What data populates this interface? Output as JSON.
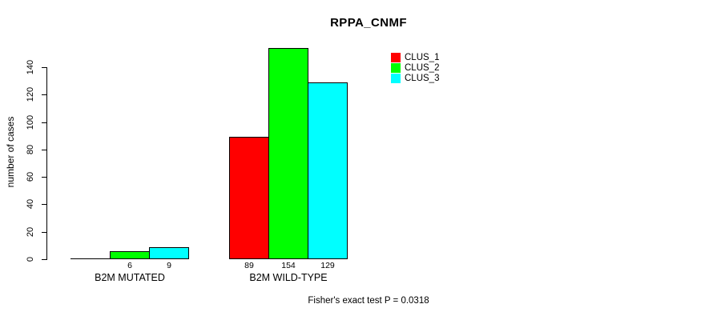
{
  "chart_data": {
    "type": "bar",
    "title": "RPPA_CNMF",
    "ylabel": "number of cases",
    "xlabel": "",
    "categories": [
      "B2M MUTATED",
      "B2M WILD-TYPE"
    ],
    "series": [
      {
        "name": "CLUS_1",
        "color": "#ff0000",
        "values": [
          0,
          89
        ]
      },
      {
        "name": "CLUS_2",
        "color": "#00ff00",
        "values": [
          6,
          154
        ]
      },
      {
        "name": "CLUS_3",
        "color": "#00ffff",
        "values": [
          9,
          129
        ]
      }
    ],
    "yticks": [
      0,
      20,
      40,
      60,
      80,
      100,
      120,
      140
    ],
    "ylim": [
      0,
      154
    ],
    "grid": false,
    "legend_position": "top-right",
    "value_labels_shown": true,
    "zero_values_unlabeled": true,
    "annotation": "Fisher's exact test P = 0.0318",
    "colors": {
      "background": "#ffffff",
      "axis": "#000000",
      "text": "#000000"
    }
  }
}
